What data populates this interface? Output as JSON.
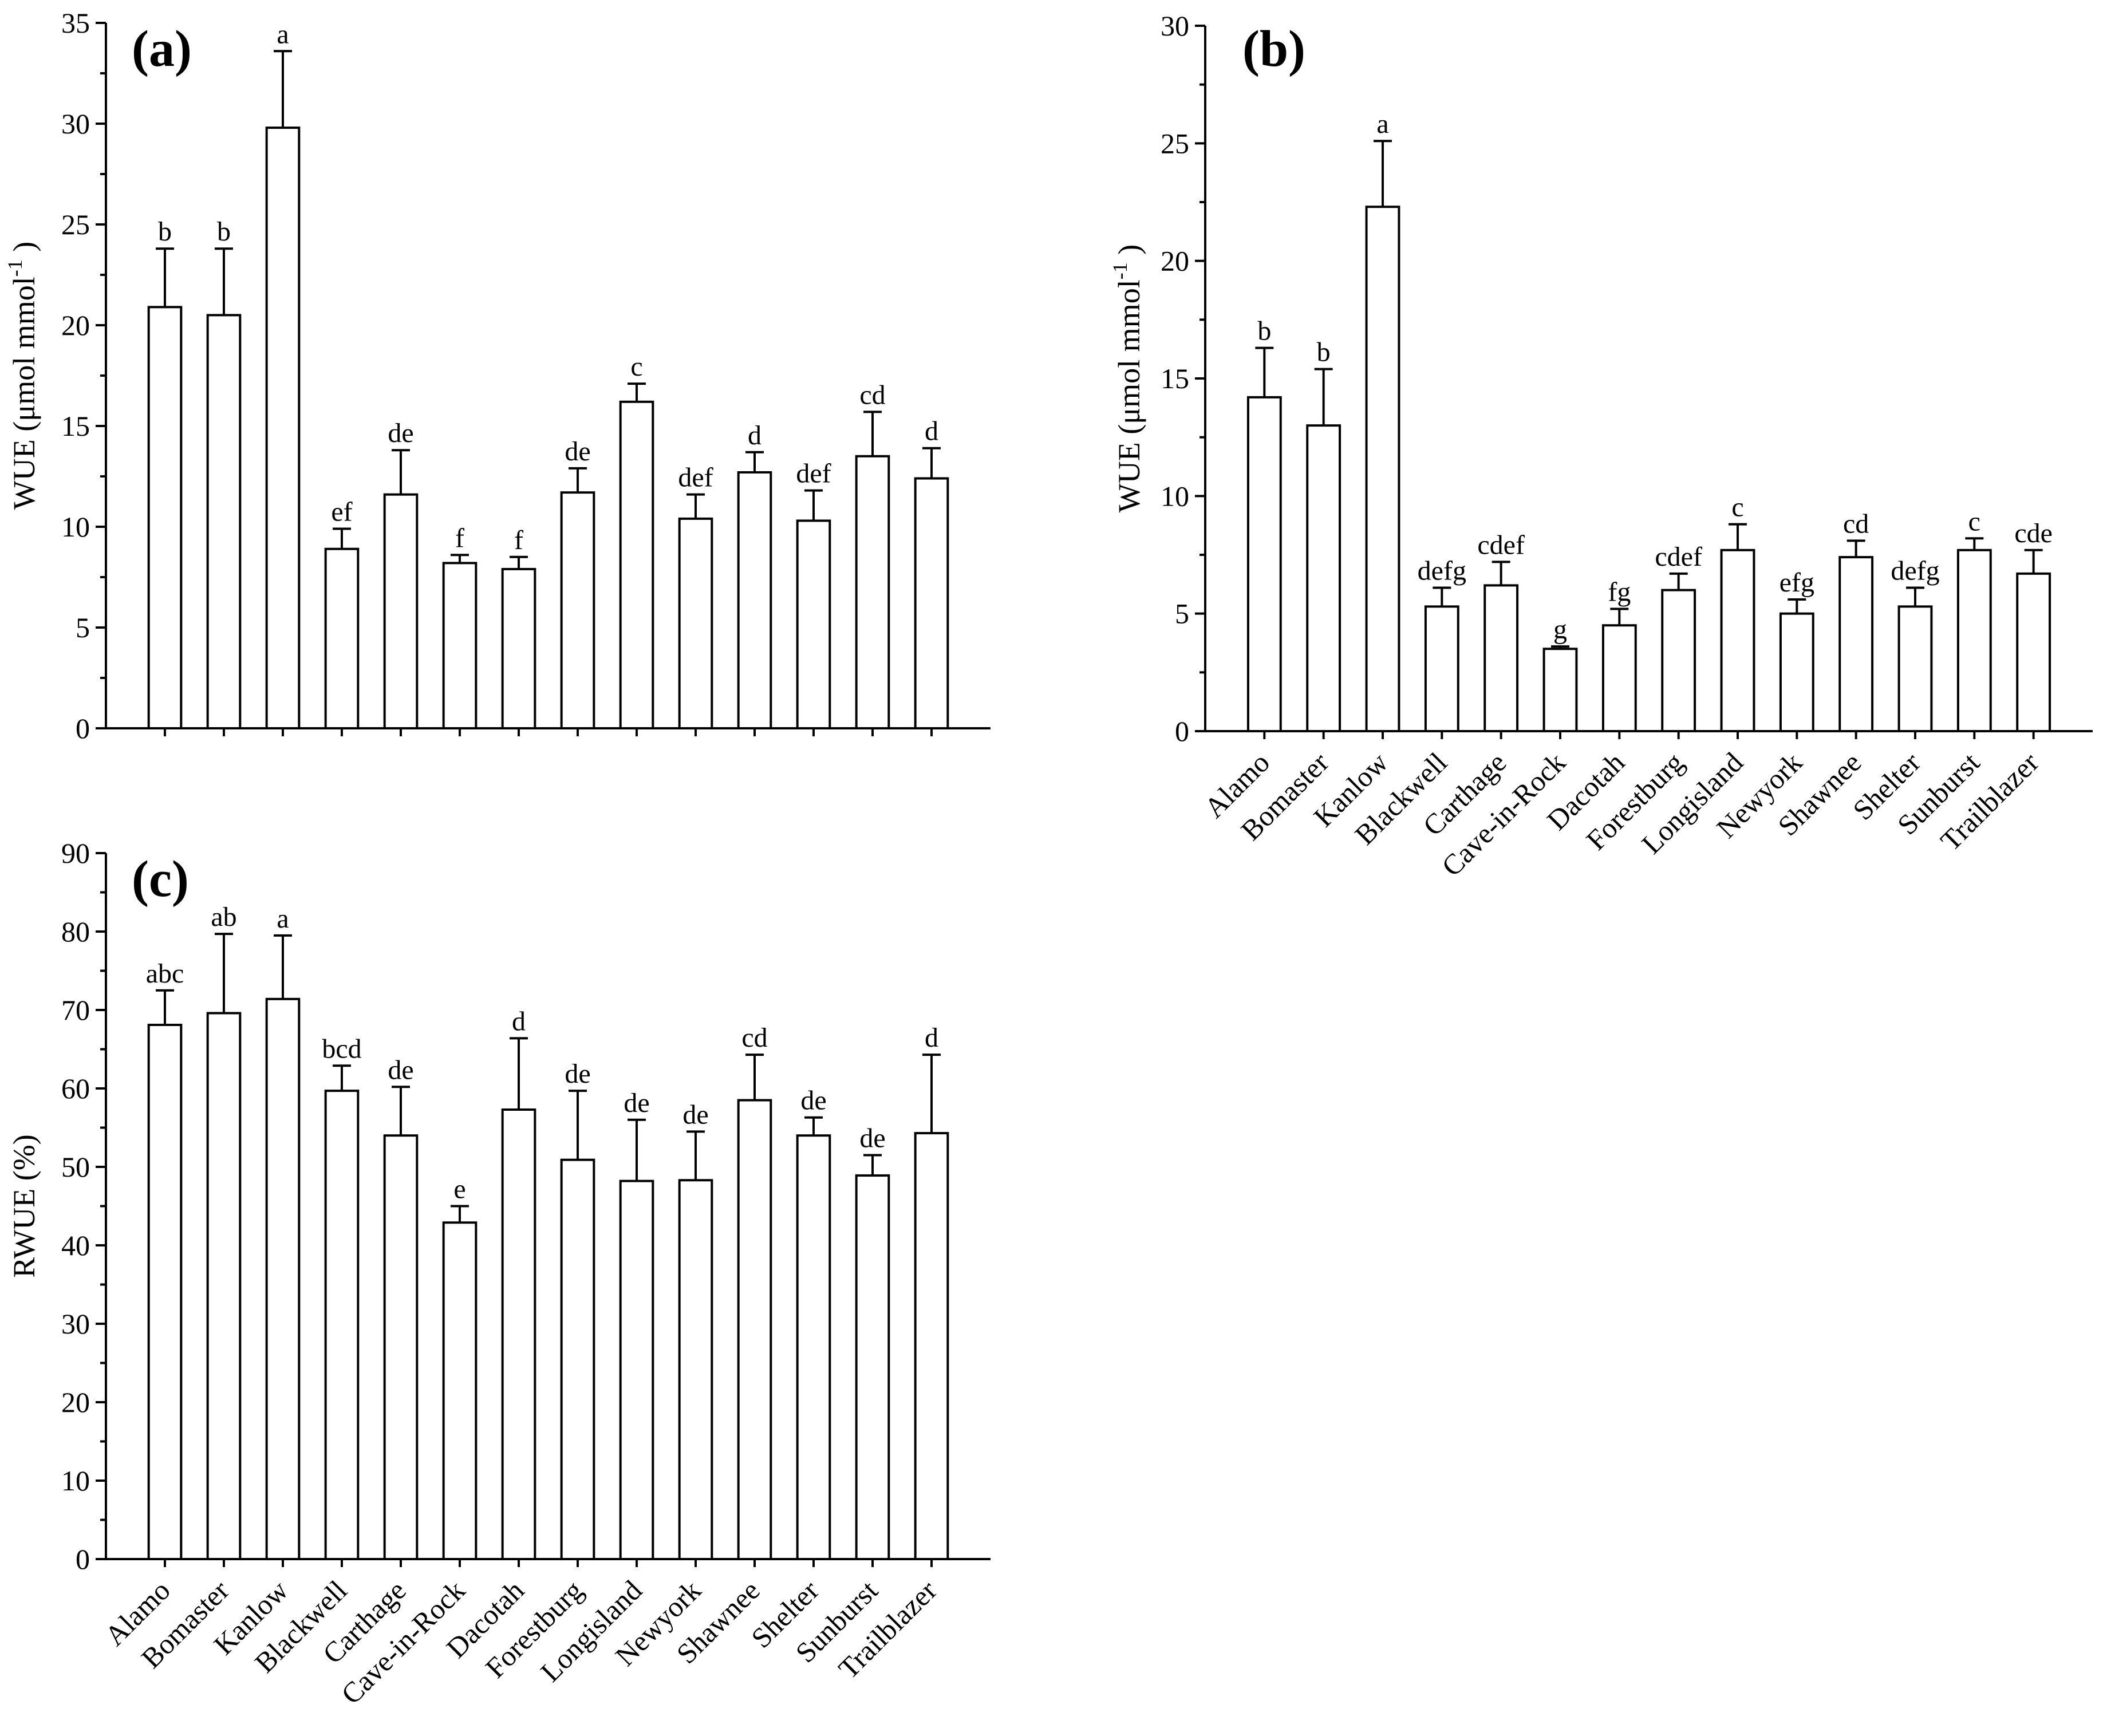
{
  "categories": [
    "Alamo",
    "Bomaster",
    "Kanlow",
    "Blackwell",
    "Carthage",
    "Cave-in-Rock",
    "Dacotah",
    "Forestburg",
    "Longisland",
    "Newyork",
    "Shawnee",
    "Shelter",
    "Sunburst",
    "Trailblazer"
  ],
  "chart_data": [
    {
      "panel": "(a)",
      "type": "bar",
      "ylabel": "WUE (μmol mmol",
      "ylabel_sup": "-1",
      "ylabel_close": ")",
      "ylim": [
        0,
        35
      ],
      "yticks": [
        0,
        5,
        10,
        15,
        20,
        25,
        30,
        35
      ],
      "show_xlabels": false,
      "values": [
        20.9,
        20.5,
        29.8,
        8.9,
        11.6,
        8.2,
        7.9,
        11.7,
        16.2,
        10.4,
        12.7,
        10.3,
        13.5,
        12.4
      ],
      "errors": [
        2.9,
        3.3,
        3.8,
        1.0,
        2.2,
        0.4,
        0.6,
        1.2,
        0.9,
        1.2,
        1.0,
        1.5,
        2.2,
        1.5
      ],
      "letters": [
        "b",
        "b",
        "a",
        "ef",
        "de",
        "f",
        "f",
        "de",
        "c",
        "def",
        "d",
        "def",
        "cd",
        "d"
      ]
    },
    {
      "panel": "(b)",
      "type": "bar",
      "ylabel": "WUE (μmol mmol",
      "ylabel_sup": "-1",
      "ylabel_close": ")",
      "ylim": [
        0,
        30
      ],
      "yticks": [
        0,
        5,
        10,
        15,
        20,
        25,
        30
      ],
      "show_xlabels": true,
      "values": [
        14.2,
        13.0,
        22.3,
        5.3,
        6.2,
        3.5,
        4.5,
        6.0,
        7.7,
        5.0,
        7.4,
        5.3,
        7.7,
        6.7
      ],
      "errors": [
        2.1,
        2.4,
        2.8,
        0.8,
        1.0,
        0.1,
        0.7,
        0.7,
        1.1,
        0.6,
        0.7,
        0.8,
        0.5,
        1.0
      ],
      "letters": [
        "b",
        "b",
        "a",
        "defg",
        "cdef",
        "g",
        "fg",
        "cdef",
        "c",
        "efg",
        "cd",
        "defg",
        "c",
        "cde"
      ]
    },
    {
      "panel": "(c)",
      "type": "bar",
      "ylabel": "RWUE (%)",
      "ylabel_sup": "",
      "ylabel_close": "",
      "ylim": [
        0,
        90
      ],
      "yticks": [
        0,
        10,
        20,
        30,
        40,
        50,
        60,
        70,
        80,
        90
      ],
      "show_xlabels": true,
      "values": [
        68.1,
        69.6,
        71.4,
        59.7,
        54.0,
        42.9,
        57.3,
        50.9,
        48.2,
        48.3,
        58.5,
        54.0,
        48.9,
        54.3
      ],
      "errors": [
        4.4,
        10.1,
        8.1,
        3.2,
        6.2,
        2.1,
        9.1,
        8.8,
        7.8,
        6.2,
        5.8,
        2.3,
        2.6,
        10.0
      ],
      "letters": [
        "abc",
        "ab",
        "a",
        "bcd",
        "de",
        "e",
        "d",
        "de",
        "de",
        "de",
        "cd",
        "de",
        "de",
        "d"
      ]
    }
  ]
}
